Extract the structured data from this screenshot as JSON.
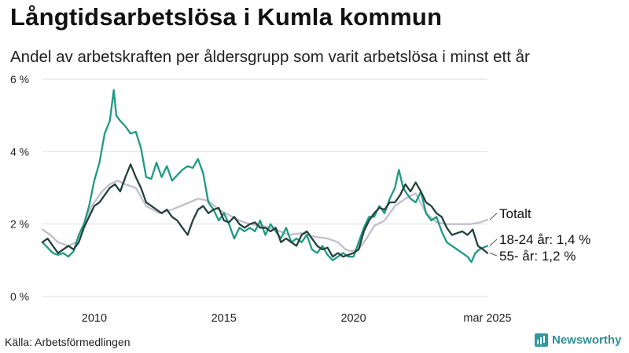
{
  "title": "Långtidsarbetslösa i Kumla kommun",
  "subtitle": "Andel av arbetskraften per åldersgrupp som varit arbetslösa i minst ett år",
  "source": "Källa: Arbetsförmedlingen",
  "brand": {
    "name": "Newsworthy",
    "icon": "newsworthy-logo-icon"
  },
  "chart_data": {
    "type": "line",
    "x_ticks": [
      {
        "x": 2010,
        "label": "2010"
      },
      {
        "x": 2015,
        "label": "2015"
      },
      {
        "x": 2020,
        "label": "2020"
      },
      {
        "x": 2025.17,
        "label": "mar 2025"
      }
    ],
    "y_ticks": [
      {
        "y": 0,
        "label": "0 %"
      },
      {
        "y": 2,
        "label": "2 %"
      },
      {
        "y": 4,
        "label": "4 %"
      },
      {
        "y": 6,
        "label": "6 %"
      }
    ],
    "xlim": [
      2008,
      2025.17
    ],
    "ylim": [
      0,
      6
    ],
    "grid": true,
    "series": [
      {
        "name": "Totalt",
        "end_label": "Totalt",
        "color": "#c3bfcb",
        "points": [
          [
            2008.0,
            1.85
          ],
          [
            2008.3,
            1.7
          ],
          [
            2008.6,
            1.5
          ],
          [
            2009.0,
            1.4
          ],
          [
            2009.3,
            1.5
          ],
          [
            2009.6,
            2.0
          ],
          [
            2009.9,
            2.5
          ],
          [
            2010.3,
            2.9
          ],
          [
            2010.6,
            3.1
          ],
          [
            2010.9,
            3.2
          ],
          [
            2011.2,
            3.1
          ],
          [
            2011.6,
            3.0
          ],
          [
            2012.0,
            2.5
          ],
          [
            2012.5,
            2.3
          ],
          [
            2013.0,
            2.4
          ],
          [
            2013.5,
            2.55
          ],
          [
            2014.0,
            2.7
          ],
          [
            2014.4,
            2.65
          ],
          [
            2014.8,
            2.4
          ],
          [
            2015.2,
            2.25
          ],
          [
            2015.6,
            2.1
          ],
          [
            2016.0,
            2.0
          ],
          [
            2016.5,
            1.95
          ],
          [
            2017.0,
            1.85
          ],
          [
            2017.5,
            1.7
          ],
          [
            2018.0,
            1.75
          ],
          [
            2018.5,
            1.65
          ],
          [
            2019.0,
            1.6
          ],
          [
            2019.4,
            1.5
          ],
          [
            2019.7,
            1.3
          ],
          [
            2019.9,
            1.25
          ],
          [
            2020.2,
            1.3
          ],
          [
            2020.5,
            1.6
          ],
          [
            2020.8,
            1.95
          ],
          [
            2021.2,
            2.1
          ],
          [
            2021.6,
            2.5
          ],
          [
            2022.0,
            2.7
          ],
          [
            2022.4,
            2.85
          ],
          [
            2022.8,
            2.3
          ],
          [
            2023.2,
            2.05
          ],
          [
            2023.6,
            2.0
          ],
          [
            2024.0,
            2.0
          ],
          [
            2024.5,
            2.0
          ],
          [
            2024.9,
            2.05
          ],
          [
            2025.17,
            2.12
          ]
        ]
      },
      {
        "name": "18-24 år",
        "end_label": "18-24 år: 1,4 %",
        "color": "#1f9a83",
        "points": [
          [
            2008.0,
            1.5
          ],
          [
            2008.2,
            1.35
          ],
          [
            2008.4,
            1.2
          ],
          [
            2008.6,
            1.15
          ],
          [
            2008.8,
            1.2
          ],
          [
            2009.0,
            1.1
          ],
          [
            2009.2,
            1.25
          ],
          [
            2009.4,
            1.7
          ],
          [
            2009.6,
            2.0
          ],
          [
            2009.8,
            2.5
          ],
          [
            2010.0,
            3.2
          ],
          [
            2010.2,
            3.7
          ],
          [
            2010.4,
            4.5
          ],
          [
            2010.6,
            4.85
          ],
          [
            2010.75,
            5.7
          ],
          [
            2010.85,
            5.0
          ],
          [
            2011.0,
            4.85
          ],
          [
            2011.2,
            4.7
          ],
          [
            2011.4,
            4.5
          ],
          [
            2011.6,
            4.55
          ],
          [
            2011.8,
            4.1
          ],
          [
            2012.0,
            3.3
          ],
          [
            2012.2,
            3.25
          ],
          [
            2012.4,
            3.7
          ],
          [
            2012.6,
            3.3
          ],
          [
            2012.8,
            3.6
          ],
          [
            2013.0,
            3.2
          ],
          [
            2013.2,
            3.35
          ],
          [
            2013.4,
            3.5
          ],
          [
            2013.6,
            3.6
          ],
          [
            2013.8,
            3.55
          ],
          [
            2014.0,
            3.8
          ],
          [
            2014.2,
            3.4
          ],
          [
            2014.4,
            2.6
          ],
          [
            2014.6,
            2.4
          ],
          [
            2014.8,
            2.1
          ],
          [
            2015.0,
            2.3
          ],
          [
            2015.2,
            2.0
          ],
          [
            2015.4,
            1.6
          ],
          [
            2015.6,
            1.9
          ],
          [
            2015.8,
            1.8
          ],
          [
            2016.0,
            1.9
          ],
          [
            2016.2,
            1.8
          ],
          [
            2016.4,
            2.1
          ],
          [
            2016.6,
            1.7
          ],
          [
            2016.8,
            2.0
          ],
          [
            2017.0,
            1.8
          ],
          [
            2017.2,
            1.6
          ],
          [
            2017.4,
            1.9
          ],
          [
            2017.6,
            1.5
          ],
          [
            2017.8,
            1.6
          ],
          [
            2018.0,
            1.5
          ],
          [
            2018.2,
            1.7
          ],
          [
            2018.4,
            1.3
          ],
          [
            2018.6,
            1.2
          ],
          [
            2018.8,
            1.4
          ],
          [
            2019.0,
            1.15
          ],
          [
            2019.2,
            1.0
          ],
          [
            2019.4,
            1.1
          ],
          [
            2019.6,
            1.2
          ],
          [
            2019.8,
            1.1
          ],
          [
            2020.0,
            1.1
          ],
          [
            2020.2,
            1.5
          ],
          [
            2020.4,
            1.9
          ],
          [
            2020.6,
            2.2
          ],
          [
            2020.8,
            2.2
          ],
          [
            2021.0,
            2.5
          ],
          [
            2021.2,
            2.3
          ],
          [
            2021.4,
            2.7
          ],
          [
            2021.6,
            3.0
          ],
          [
            2021.75,
            3.5
          ],
          [
            2021.9,
            3.05
          ],
          [
            2022.0,
            2.9
          ],
          [
            2022.2,
            2.7
          ],
          [
            2022.4,
            2.6
          ],
          [
            2022.6,
            2.9
          ],
          [
            2022.8,
            2.3
          ],
          [
            2023.0,
            2.1
          ],
          [
            2023.2,
            2.2
          ],
          [
            2023.4,
            1.8
          ],
          [
            2023.6,
            1.5
          ],
          [
            2023.8,
            1.4
          ],
          [
            2024.0,
            1.3
          ],
          [
            2024.2,
            1.2
          ],
          [
            2024.4,
            1.1
          ],
          [
            2024.55,
            0.95
          ],
          [
            2024.7,
            1.2
          ],
          [
            2024.85,
            1.3
          ],
          [
            2025.0,
            1.35
          ],
          [
            2025.17,
            1.4
          ]
        ]
      },
      {
        "name": "55- år",
        "end_label": "55- år: 1,2 %",
        "color": "#23423c",
        "points": [
          [
            2008.0,
            1.5
          ],
          [
            2008.2,
            1.6
          ],
          [
            2008.4,
            1.4
          ],
          [
            2008.6,
            1.2
          ],
          [
            2008.8,
            1.3
          ],
          [
            2009.0,
            1.4
          ],
          [
            2009.2,
            1.3
          ],
          [
            2009.4,
            1.5
          ],
          [
            2009.6,
            1.9
          ],
          [
            2009.8,
            2.2
          ],
          [
            2010.0,
            2.5
          ],
          [
            2010.2,
            2.6
          ],
          [
            2010.4,
            2.8
          ],
          [
            2010.6,
            3.0
          ],
          [
            2010.8,
            3.1
          ],
          [
            2011.0,
            2.9
          ],
          [
            2011.2,
            3.3
          ],
          [
            2011.4,
            3.65
          ],
          [
            2011.6,
            3.3
          ],
          [
            2011.8,
            3.0
          ],
          [
            2012.0,
            2.6
          ],
          [
            2012.2,
            2.5
          ],
          [
            2012.4,
            2.4
          ],
          [
            2012.6,
            2.3
          ],
          [
            2012.8,
            2.4
          ],
          [
            2013.0,
            2.2
          ],
          [
            2013.2,
            2.1
          ],
          [
            2013.4,
            1.9
          ],
          [
            2013.6,
            1.7
          ],
          [
            2013.8,
            2.1
          ],
          [
            2014.0,
            2.4
          ],
          [
            2014.2,
            2.5
          ],
          [
            2014.4,
            2.3
          ],
          [
            2014.6,
            2.4
          ],
          [
            2014.8,
            2.45
          ],
          [
            2015.0,
            2.1
          ],
          [
            2015.2,
            2.05
          ],
          [
            2015.4,
            2.2
          ],
          [
            2015.6,
            2.0
          ],
          [
            2015.8,
            1.9
          ],
          [
            2016.0,
            2.0
          ],
          [
            2016.2,
            2.05
          ],
          [
            2016.4,
            1.9
          ],
          [
            2016.6,
            1.9
          ],
          [
            2016.8,
            1.8
          ],
          [
            2017.0,
            1.9
          ],
          [
            2017.2,
            1.5
          ],
          [
            2017.4,
            1.6
          ],
          [
            2017.6,
            1.5
          ],
          [
            2017.8,
            1.4
          ],
          [
            2018.0,
            1.7
          ],
          [
            2018.2,
            1.8
          ],
          [
            2018.4,
            1.6
          ],
          [
            2018.6,
            1.4
          ],
          [
            2018.8,
            1.3
          ],
          [
            2019.0,
            1.35
          ],
          [
            2019.2,
            1.1
          ],
          [
            2019.4,
            1.2
          ],
          [
            2019.6,
            1.1
          ],
          [
            2019.8,
            1.15
          ],
          [
            2020.0,
            1.2
          ],
          [
            2020.2,
            1.3
          ],
          [
            2020.4,
            1.8
          ],
          [
            2020.6,
            2.1
          ],
          [
            2020.8,
            2.3
          ],
          [
            2021.0,
            2.45
          ],
          [
            2021.2,
            2.4
          ],
          [
            2021.4,
            2.6
          ],
          [
            2021.6,
            2.6
          ],
          [
            2021.8,
            2.8
          ],
          [
            2022.0,
            3.1
          ],
          [
            2022.2,
            2.9
          ],
          [
            2022.4,
            3.15
          ],
          [
            2022.6,
            2.9
          ],
          [
            2022.8,
            2.6
          ],
          [
            2023.0,
            2.5
          ],
          [
            2023.2,
            2.3
          ],
          [
            2023.4,
            2.2
          ],
          [
            2023.6,
            1.9
          ],
          [
            2023.8,
            1.7
          ],
          [
            2024.0,
            1.75
          ],
          [
            2024.2,
            1.8
          ],
          [
            2024.4,
            1.7
          ],
          [
            2024.6,
            1.85
          ],
          [
            2024.8,
            1.4
          ],
          [
            2025.0,
            1.3
          ],
          [
            2025.17,
            1.2
          ]
        ]
      }
    ]
  }
}
